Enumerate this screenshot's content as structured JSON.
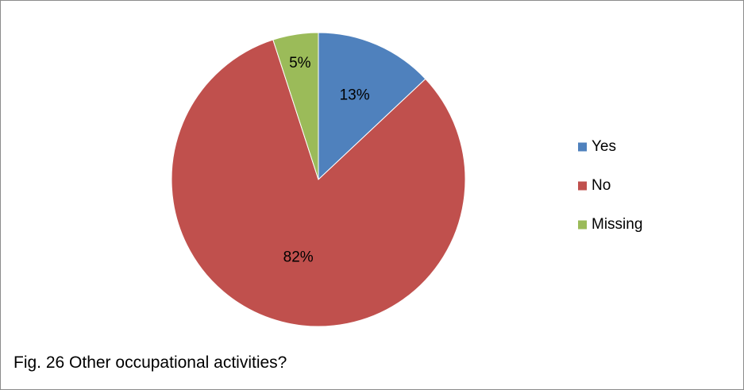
{
  "caption": "Fig. 26 Other occupational activities?",
  "chart_data": {
    "type": "pie",
    "categories": [
      "Yes",
      "No",
      "Missing"
    ],
    "values": [
      13,
      82,
      5
    ],
    "value_labels": [
      "13%",
      "82%",
      "5%"
    ],
    "colors": [
      "#4F81BD",
      "#C0504D",
      "#9BBB59"
    ],
    "title": "",
    "legend_position": "right",
    "start_angle": "12 o'clock",
    "direction": "clockwise"
  }
}
